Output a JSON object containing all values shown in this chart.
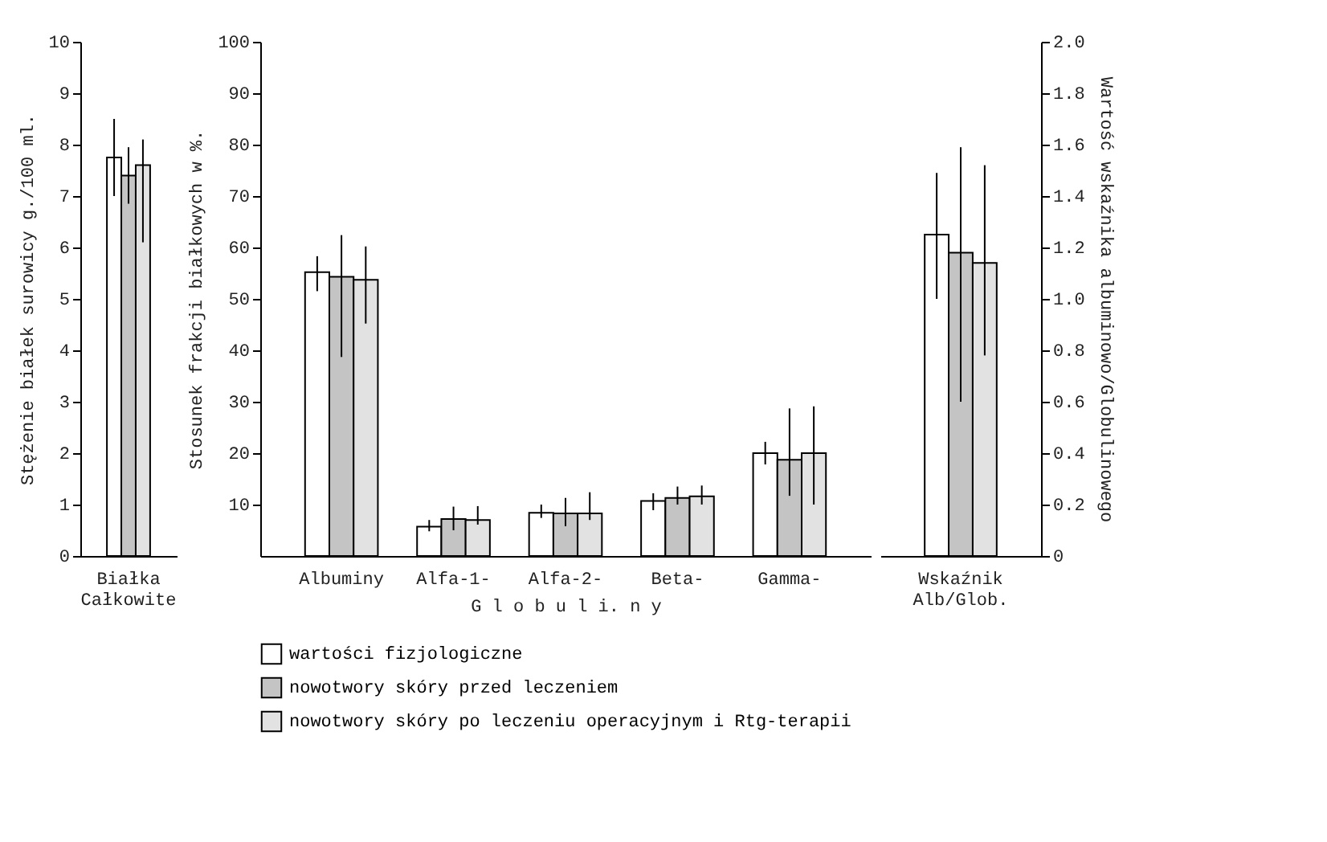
{
  "chart_data": [
    {
      "type": "bar",
      "categories": [
        "Białka Całkowite"
      ],
      "ylabel": "Stężenie białek surowicy g./100 ml.",
      "ylim": [
        0,
        10
      ],
      "yticks": [
        0,
        1,
        2,
        3,
        4,
        5,
        6,
        7,
        8,
        9,
        10
      ],
      "series": [
        {
          "color": "#ffffff",
          "values": [
            7.75
          ],
          "errors": [
            [
              7.0,
              8.5
            ]
          ]
        },
        {
          "color": "#c4c4c4",
          "values": [
            7.4
          ],
          "errors": [
            [
              6.85,
              7.95
            ]
          ]
        },
        {
          "color": "#e2e2e2",
          "values": [
            7.6
          ],
          "errors": [
            [
              6.1,
              8.1
            ]
          ]
        }
      ]
    },
    {
      "type": "bar",
      "categories": [
        "Albuminy",
        "Alfa-1-",
        "Alfa-2-",
        "Beta-",
        "Gamma-"
      ],
      "xlabel": "G l o b u l i. n y",
      "ylabel": "Stosunek frakcji białkowych w %.",
      "ylim": [
        0,
        100
      ],
      "yticks": [
        10,
        20,
        30,
        40,
        50,
        60,
        70,
        80,
        90,
        100
      ],
      "legend": "bottom",
      "series": [
        {
          "name": "wartości fizjologiczne",
          "color": "#ffffff",
          "values": [
            55.2,
            5.7,
            8.4,
            10.7,
            20.0
          ],
          "errors": [
            [
              51.5,
              58.3
            ],
            [
              4.8,
              7.0
            ],
            [
              7.4,
              10.0
            ],
            [
              8.9,
              12.2
            ],
            [
              17.8,
              22.2
            ]
          ]
        },
        {
          "name": "nowotwory skóry przed leczeniem",
          "color": "#c4c4c4",
          "values": [
            54.3,
            7.2,
            8.3,
            11.3,
            18.7
          ],
          "errors": [
            [
              38.7,
              62.4
            ],
            [
              5.0,
              9.6
            ],
            [
              5.8,
              11.3
            ],
            [
              10.0,
              13.5
            ],
            [
              11.7,
              28.7
            ]
          ]
        },
        {
          "name": "nowotwory skóry po leczeniu operacyjnym i Rtg-terapii",
          "color": "#e2e2e2",
          "values": [
            53.7,
            7.0,
            8.3,
            11.6,
            20.0
          ],
          "errors": [
            [
              45.2,
              60.2
            ],
            [
              6.1,
              9.7
            ],
            [
              7.0,
              12.4
            ],
            [
              10.0,
              13.7
            ],
            [
              10.0,
              29.1
            ]
          ]
        }
      ]
    },
    {
      "type": "bar",
      "categories": [
        "Wskaźnik Alb/Glob."
      ],
      "y2label": "Wartość wskaźnika albuminowo/Globulinowego",
      "y2lim": [
        0,
        2
      ],
      "y2ticks": [
        0,
        0.2,
        0.4,
        0.6,
        0.8,
        {
          "value": 1,
          "label": "1.0"
        },
        1.2,
        1.4,
        1.6,
        1.8,
        {
          "value": 2,
          "label": "2.0"
        }
      ],
      "series": [
        {
          "axis": "y2",
          "color": "#ffffff",
          "values": [
            1.25
          ],
          "errors": [
            [
              1.0,
              1.49
            ]
          ]
        },
        {
          "axis": "y2",
          "color": "#c4c4c4",
          "values": [
            1.18
          ],
          "errors": [
            [
              0.6,
              1.59
            ]
          ]
        },
        {
          "axis": "y2",
          "color": "#e2e2e2",
          "values": [
            1.14
          ],
          "errors": [
            [
              0.78,
              1.52
            ]
          ]
        }
      ]
    }
  ]
}
